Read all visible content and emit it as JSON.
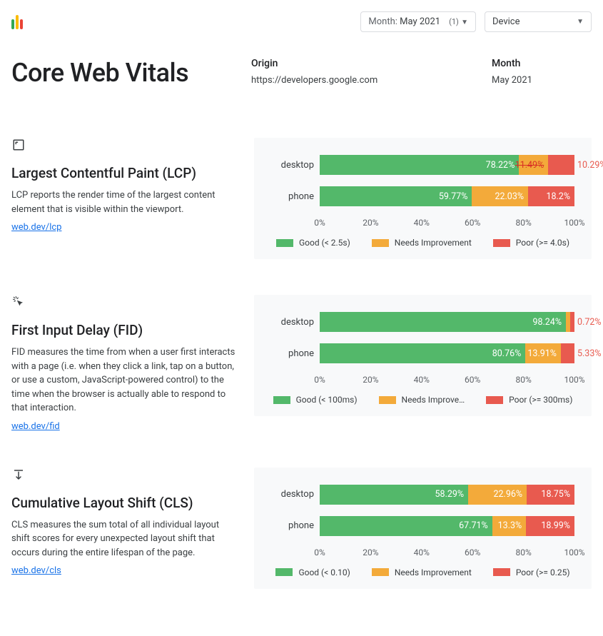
{
  "colors": {
    "good": "#53b86a",
    "needs": "#f3aa3a",
    "poor": "#e85a4f",
    "bg_card": "#f8f9fa",
    "text": "#202124",
    "muted": "#5f6368",
    "link": "#1a73e8",
    "border": "#dadce0",
    "logo": [
      "#34a853",
      "#fbbc04",
      "#ea4335"
    ]
  },
  "topbar": {
    "month_dropdown": {
      "label": "Month:",
      "value": "May 2021",
      "count": "(1)"
    },
    "device_dropdown": {
      "label": "Device"
    }
  },
  "header": {
    "title": "Core Web Vitals",
    "origin_label": "Origin",
    "origin_value": "https://developers.google.com",
    "month_label": "Month",
    "month_value": "May 2021"
  },
  "axis": {
    "ticks": [
      0,
      20,
      40,
      60,
      80,
      100
    ],
    "tick_labels": [
      "0%",
      "20%",
      "40%",
      "60%",
      "80%",
      "100%"
    ]
  },
  "metrics": [
    {
      "key": "lcp",
      "icon": "frame-icon",
      "title": "Largest Contentful Paint (LCP)",
      "text": "LCP reports the render time of the largest content element that is visible within the viewport.",
      "link_text": "web.dev/lcp",
      "legend": {
        "good": "Good (< 2.5s)",
        "needs": "Needs Improvement",
        "poor": "Poor (>= 4.0s)"
      },
      "rows": [
        {
          "label": "desktop",
          "good": 78.22,
          "needs": 11.49,
          "poor": 10.29,
          "good_txt": "78.22%",
          "needs_txt": "11.49%",
          "poor_txt": "10.29%",
          "poor_outside": true,
          "needs_strike": true
        },
        {
          "label": "phone",
          "good": 59.77,
          "needs": 22.03,
          "poor": 18.2,
          "good_txt": "59.77%",
          "needs_txt": "22.03%",
          "poor_txt": "18.2%",
          "poor_outside": false
        }
      ]
    },
    {
      "key": "fid",
      "icon": "cursor-click-icon",
      "title": "First Input Delay (FID)",
      "text": "FID measures the time from when a user first interacts with a page (i.e. when they click a link, tap on a button, or use a custom, JavaScript-powered control) to the time when the browser is actually able to respond to that interaction.",
      "link_text": "web.dev/fid",
      "legend": {
        "good": "Good (< 100ms)",
        "needs": "Needs Improve…",
        "poor": "Poor (>= 300ms)"
      },
      "rows": [
        {
          "label": "desktop",
          "good": 98.24,
          "needs": 1.04,
          "poor": 0.72,
          "good_txt": "98.24%",
          "needs_txt": "1.04%",
          "poor_txt": "0.72%",
          "poor_outside": true,
          "needs_hide": true
        },
        {
          "label": "phone",
          "good": 80.76,
          "needs": 13.91,
          "poor": 5.33,
          "good_txt": "80.76%",
          "needs_txt": "13.91%",
          "poor_txt": "5.33%",
          "poor_outside": true
        }
      ]
    },
    {
      "key": "cls",
      "icon": "layout-shift-icon",
      "title": "Cumulative Layout Shift (CLS)",
      "text": "CLS measures the sum total of all individual layout shift scores for every unexpected layout shift that occurs during the entire lifespan of the page.",
      "link_text": "web.dev/cls",
      "legend": {
        "good": "Good (< 0.10)",
        "needs": "Needs Improvement",
        "poor": "Poor (>= 0.25)"
      },
      "rows": [
        {
          "label": "desktop",
          "good": 58.29,
          "needs": 22.96,
          "poor": 18.75,
          "good_txt": "58.29%",
          "needs_txt": "22.96%",
          "poor_txt": "18.75%",
          "poor_outside": false
        },
        {
          "label": "phone",
          "good": 67.71,
          "needs": 13.3,
          "poor": 18.99,
          "good_txt": "67.71%",
          "needs_txt": "13.3%",
          "poor_txt": "18.99%",
          "poor_outside": false
        }
      ]
    }
  ]
}
